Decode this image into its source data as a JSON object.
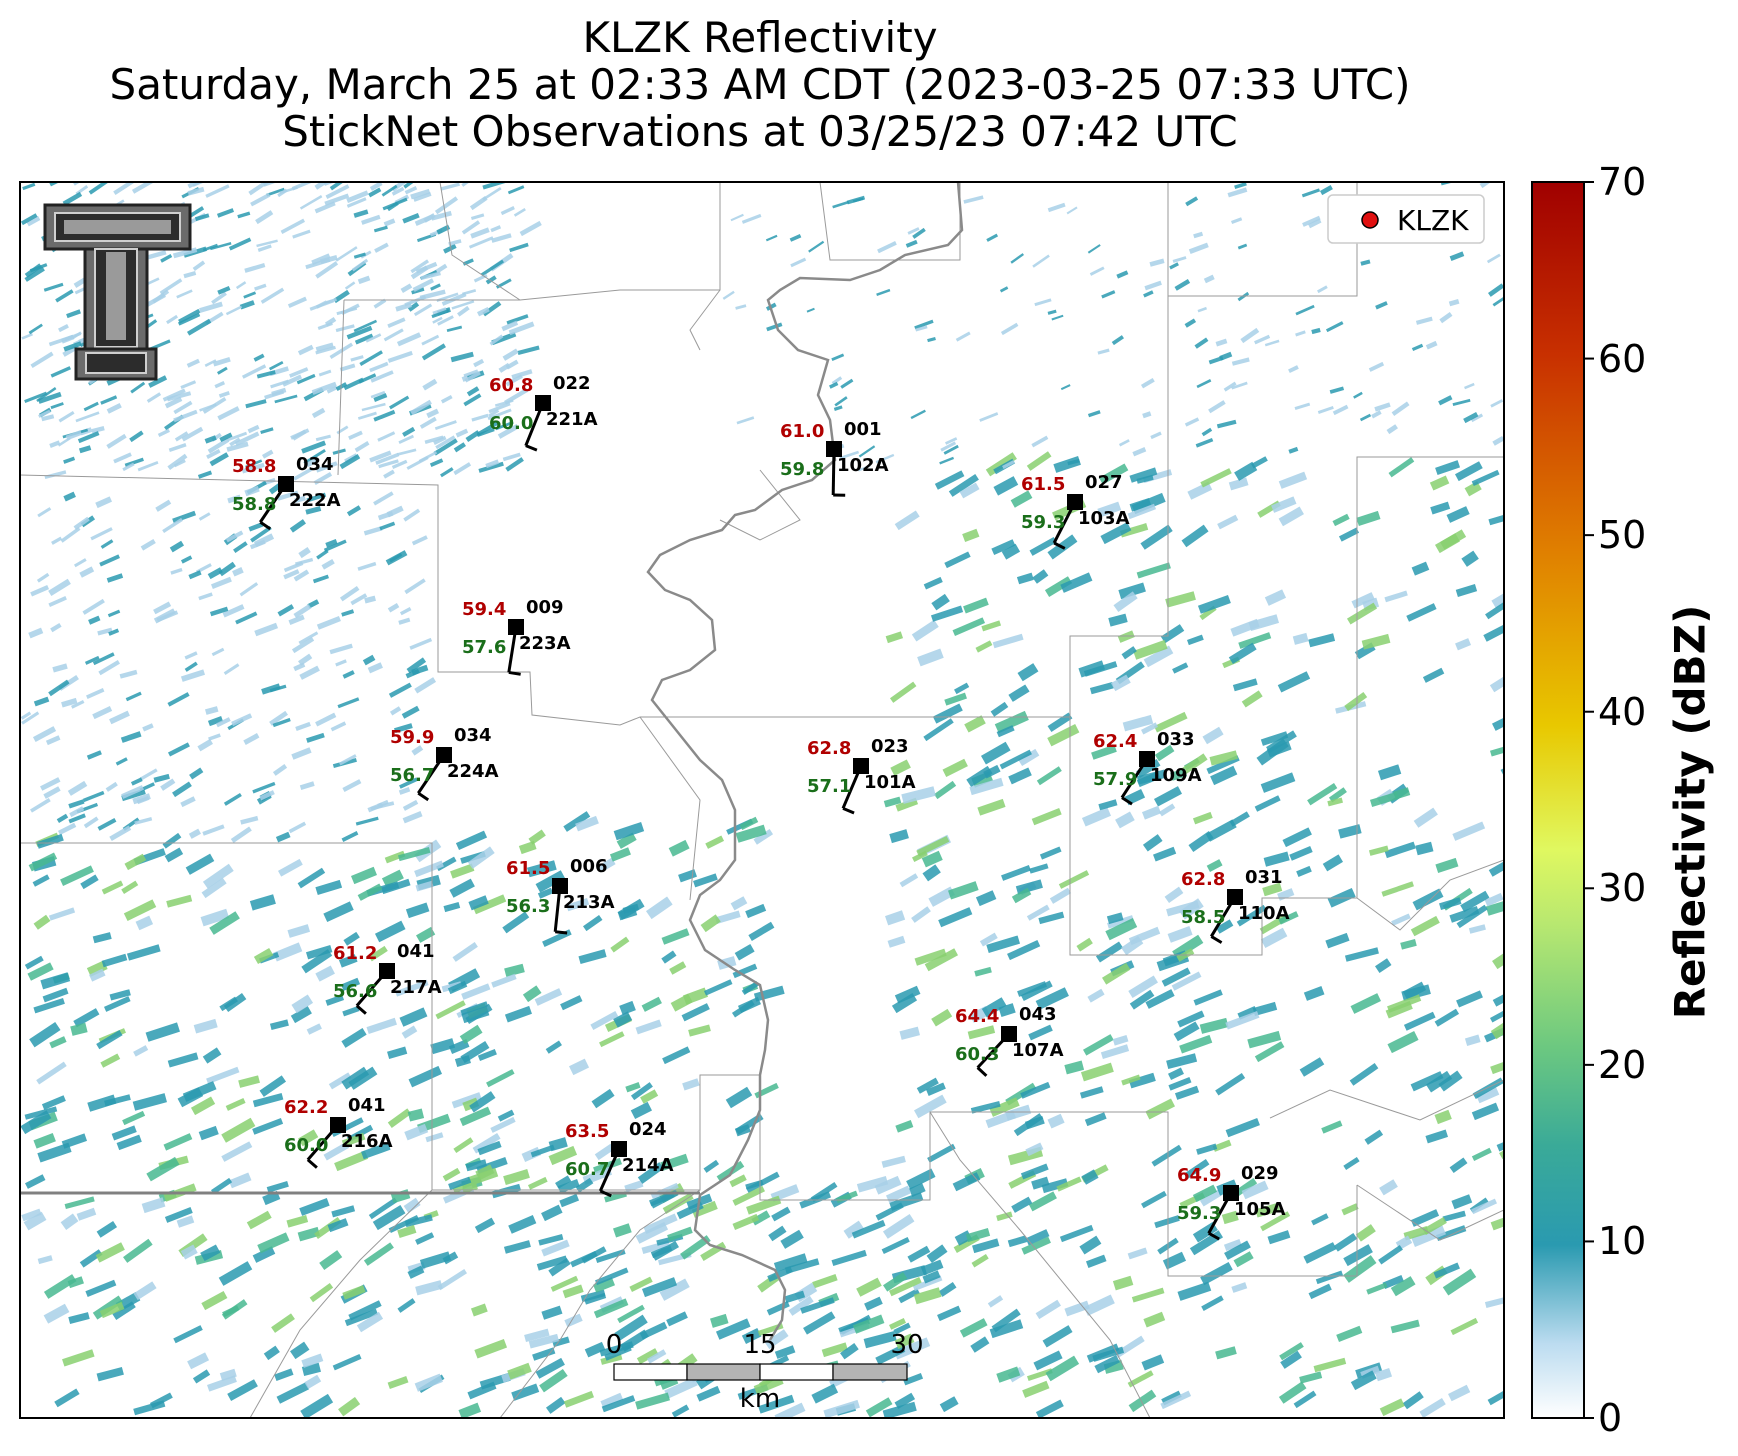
{
  "title": {
    "line1": "KLZK Reflectivity",
    "line2": "Saturday, March 25 at 02:33 AM CDT (2023-03-25 07:33 UTC)",
    "line3": "StickNet Observations at 03/25/23 07:42 UTC"
  },
  "legend": {
    "label": "KLZK",
    "marker_color": "#e01010",
    "placement": "upper-right"
  },
  "colorbar": {
    "label": "Reflectivity (dBZ)",
    "range": [
      0,
      70
    ],
    "ticks": [
      "0",
      "10",
      "20",
      "30",
      "40",
      "50",
      "60",
      "70"
    ],
    "colors": [
      "#ffffff",
      "#a8d0e8",
      "#2a9ab0",
      "#48b890",
      "#88d070",
      "#e0f060",
      "#e8c800",
      "#e08000",
      "#c83000",
      "#a00000"
    ]
  },
  "scale_bar": {
    "ticks": [
      "0",
      "15",
      "30"
    ],
    "unit": "km"
  },
  "logo": {
    "name": "texas-tech-double-t-logo"
  },
  "stations": [
    {
      "id": "222A",
      "temp": "58.8",
      "dew": "58.8",
      "dir": "034"
    },
    {
      "id": "221A",
      "temp": "60.8",
      "dew": "60.0",
      "dir": "022"
    },
    {
      "id": "102A",
      "temp": "61.0",
      "dew": "59.8",
      "dir": "001"
    },
    {
      "id": "103A",
      "temp": "61.5",
      "dew": "59.3",
      "dir": "027"
    },
    {
      "id": "223A",
      "temp": "59.4",
      "dew": "57.6",
      "dir": "009"
    },
    {
      "id": "224A",
      "temp": "59.9",
      "dew": "56.7",
      "dir": "034"
    },
    {
      "id": "101A",
      "temp": "62.8",
      "dew": "57.1",
      "dir": "023"
    },
    {
      "id": "109A",
      "temp": "62.4",
      "dew": "57.9",
      "dir": "033"
    },
    {
      "id": "213A",
      "temp": "61.5",
      "dew": "56.3",
      "dir": "006"
    },
    {
      "id": "110A",
      "temp": "62.8",
      "dew": "58.5",
      "dir": "031"
    },
    {
      "id": "217A",
      "temp": "61.2",
      "dew": "56.6",
      "dir": "041"
    },
    {
      "id": "107A",
      "temp": "64.4",
      "dew": "60.3",
      "dir": "043"
    },
    {
      "id": "216A",
      "temp": "62.2",
      "dew": "60.0",
      "dir": "041"
    },
    {
      "id": "214A",
      "temp": "63.5",
      "dew": "60.7",
      "dir": "024"
    },
    {
      "id": "105A",
      "temp": "64.9",
      "dew": "59.3",
      "dir": "029"
    }
  ]
}
